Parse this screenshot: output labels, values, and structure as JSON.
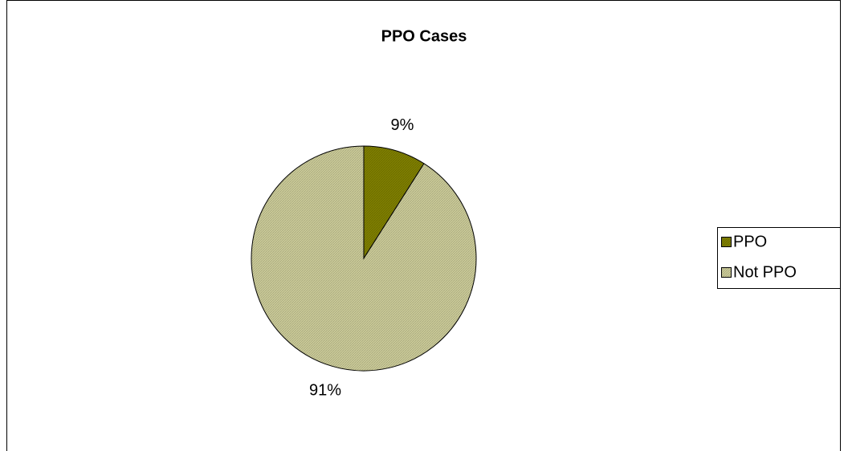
{
  "chart_data": {
    "type": "pie",
    "title": "PPO Cases",
    "categories": [
      "PPO",
      "Not PPO"
    ],
    "values": [
      9,
      91
    ],
    "value_labels": [
      "9%",
      "91%"
    ],
    "colors": [
      "#808000",
      "#cccc99"
    ],
    "legend": "right"
  }
}
